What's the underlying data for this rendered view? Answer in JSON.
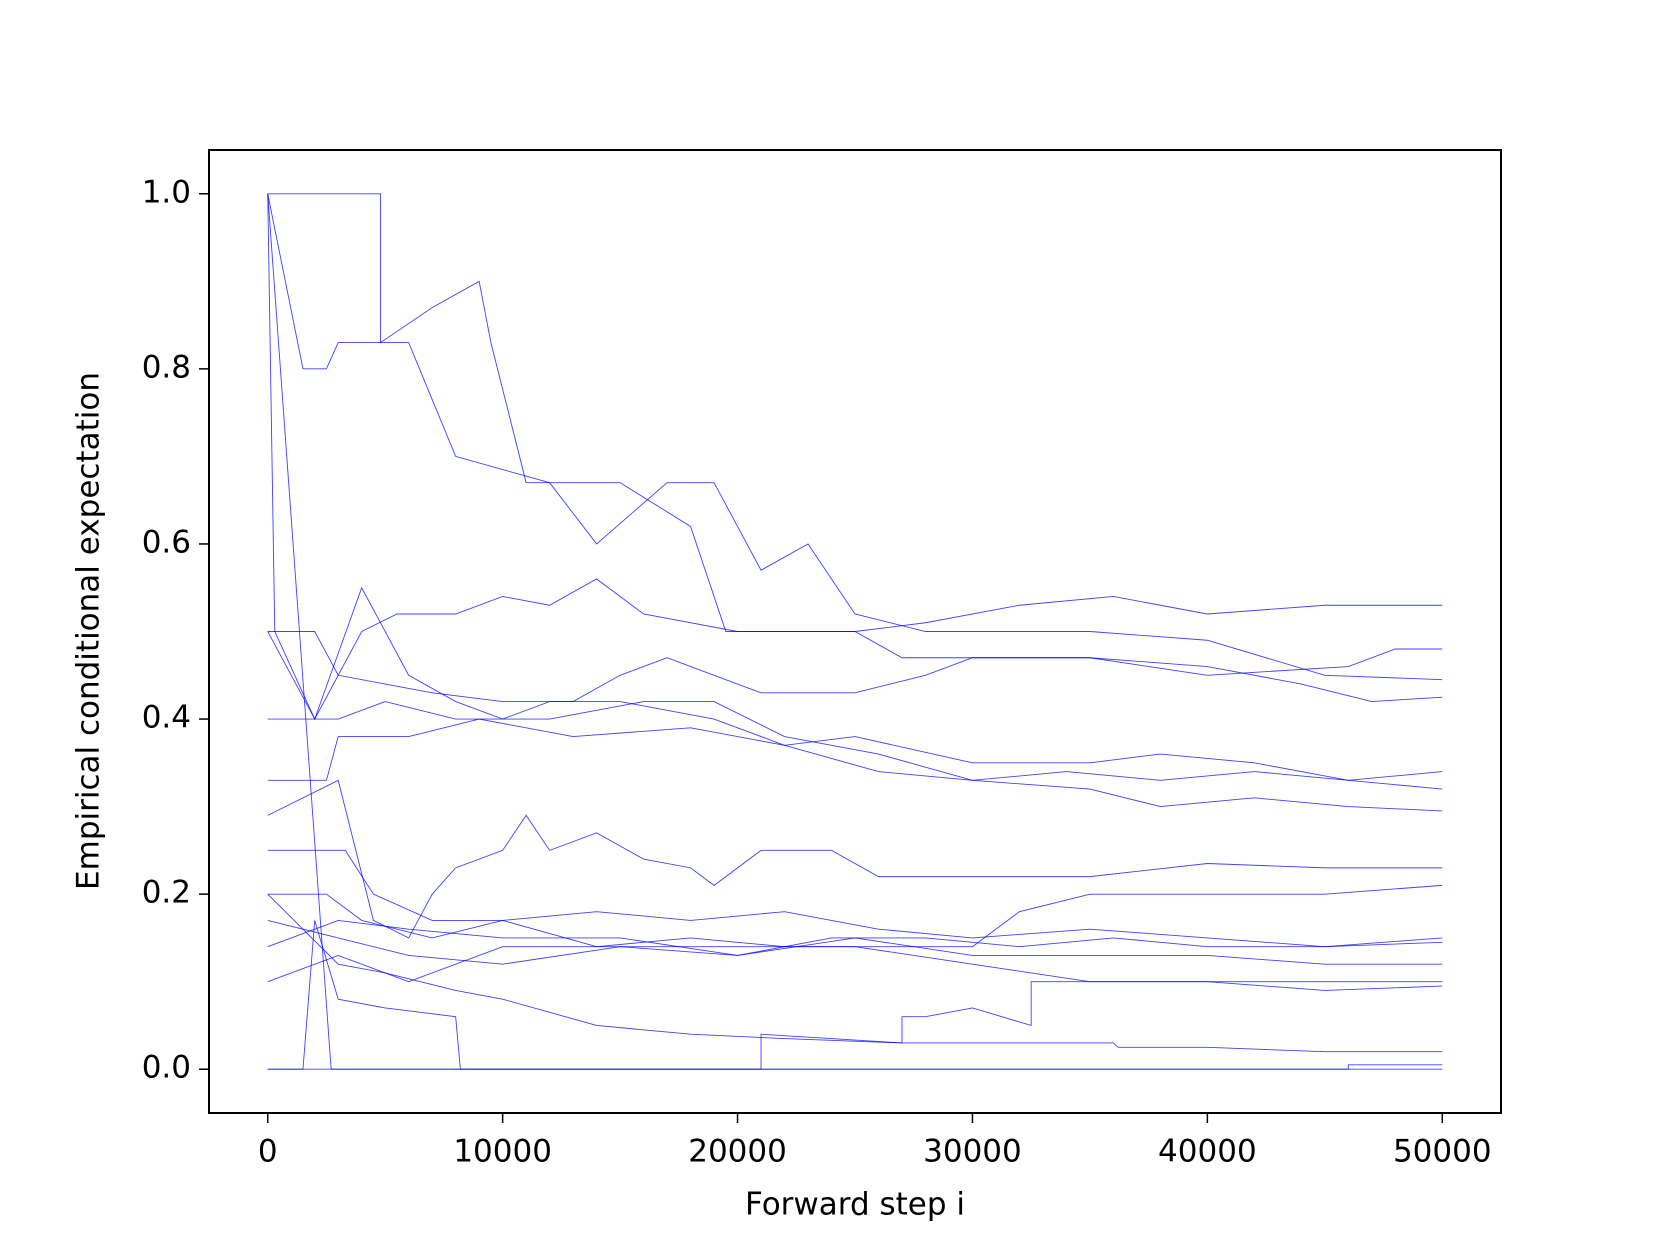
{
  "chart_data": {
    "type": "line",
    "xlabel": "Forward step i",
    "ylabel": "Empirical conditional expectation",
    "xlim": [
      -2500,
      52500
    ],
    "ylim": [
      -0.05,
      1.05
    ],
    "xticks": [
      0,
      10000,
      20000,
      30000,
      40000,
      50000
    ],
    "yticks": [
      {
        "value": 0,
        "label": "0.0"
      },
      0.2,
      0.4,
      0.6,
      0.8,
      {
        "value": 1,
        "label": "1.0"
      }
    ],
    "grid": false,
    "series": [
      {
        "color": "#0000ff",
        "x": [
          0,
          300,
          2000,
          4000,
          5500,
          8000,
          10000,
          12000,
          14000,
          16000,
          20000,
          25000,
          28000,
          32000,
          36000,
          40000,
          45000,
          50000
        ],
        "values": [
          1,
          0.5,
          0.4,
          0.5,
          0.52,
          0.52,
          0.54,
          0.53,
          0.56,
          0.52,
          0.5,
          0.5,
          0.51,
          0.53,
          0.54,
          0.52,
          0.53,
          0.53
        ]
      },
      {
        "color": "#0000ff",
        "x": [
          0,
          4800,
          4800,
          7000,
          9000,
          9500,
          11000,
          15000,
          18000,
          19500,
          25000,
          27000,
          30000,
          35000,
          40000,
          46000,
          48000,
          50000
        ],
        "values": [
          1,
          1,
          0.83,
          0.87,
          0.9,
          0.83,
          0.67,
          0.67,
          0.62,
          0.5,
          0.5,
          0.47,
          0.47,
          0.47,
          0.45,
          0.46,
          0.48,
          0.48
        ]
      },
      {
        "color": "#0000ff",
        "x": [
          0,
          1500,
          2500,
          3000,
          6000,
          8000,
          12000,
          14000,
          17000,
          19000,
          21000,
          23000,
          25000,
          28000,
          30000,
          35000,
          40000,
          45000,
          50000
        ],
        "values": [
          1,
          0.8,
          0.8,
          0.83,
          0.83,
          0.7,
          0.67,
          0.6,
          0.67,
          0.67,
          0.57,
          0.6,
          0.52,
          0.5,
          0.5,
          0.5,
          0.49,
          0.45,
          0.445
        ]
      },
      {
        "color": "#0000ff",
        "x": [
          0,
          2000,
          3000,
          5000,
          7000,
          10000,
          13000,
          15000,
          17000,
          19000,
          21000,
          25000,
          28000,
          30000,
          35000,
          40000,
          44000,
          47000,
          50000
        ],
        "values": [
          0.5,
          0.5,
          0.45,
          0.44,
          0.43,
          0.42,
          0.42,
          0.45,
          0.47,
          0.45,
          0.43,
          0.43,
          0.45,
          0.47,
          0.47,
          0.46,
          0.44,
          0.42,
          0.425
        ]
      },
      {
        "color": "#0000ff",
        "x": [
          0,
          2000,
          4000,
          6000,
          8000,
          10000,
          12000,
          15000,
          19000,
          22000,
          25000,
          30000,
          35000,
          38000,
          42000,
          46000,
          50000
        ],
        "values": [
          0.5,
          0.4,
          0.55,
          0.45,
          0.42,
          0.4,
          0.42,
          0.42,
          0.4,
          0.37,
          0.38,
          0.35,
          0.35,
          0.36,
          0.35,
          0.33,
          0.34
        ]
      },
      {
        "color": "#0000ff",
        "x": [
          0,
          3000,
          5000,
          8000,
          12000,
          16000,
          19000,
          22000,
          26000,
          30000,
          34000,
          38000,
          42000,
          46000,
          50000
        ],
        "values": [
          0.4,
          0.4,
          0.42,
          0.4,
          0.4,
          0.42,
          0.42,
          0.38,
          0.36,
          0.33,
          0.34,
          0.33,
          0.34,
          0.33,
          0.32
        ]
      },
      {
        "color": "#0000ff",
        "x": [
          0,
          2500,
          3000,
          6000,
          9000,
          13000,
          18000,
          22000,
          26000,
          30000,
          35000,
          38000,
          42000,
          46000,
          50000
        ],
        "values": [
          0.33,
          0.33,
          0.38,
          0.38,
          0.4,
          0.38,
          0.39,
          0.37,
          0.34,
          0.33,
          0.32,
          0.3,
          0.31,
          0.3,
          0.295
        ]
      },
      {
        "color": "#0000ff",
        "x": [
          0,
          3000,
          4500,
          6000,
          7000,
          8000,
          10000,
          11000,
          12000,
          14000,
          16000,
          18000,
          19000,
          21000,
          24000,
          26000,
          30000,
          35000,
          40000,
          45000,
          50000
        ],
        "values": [
          0.29,
          0.33,
          0.17,
          0.15,
          0.2,
          0.23,
          0.25,
          0.29,
          0.25,
          0.27,
          0.24,
          0.23,
          0.21,
          0.25,
          0.25,
          0.22,
          0.22,
          0.22,
          0.235,
          0.23,
          0.23
        ]
      },
      {
        "color": "#0000ff",
        "x": [
          0,
          2000,
          3300,
          4500,
          7000,
          10000,
          14000,
          18000,
          22000,
          26000,
          30000,
          32000,
          35000,
          40000,
          45000,
          50000
        ],
        "values": [
          0.25,
          0.25,
          0.25,
          0.2,
          0.17,
          0.17,
          0.14,
          0.15,
          0.14,
          0.14,
          0.14,
          0.18,
          0.2,
          0.2,
          0.2,
          0.21
        ]
      },
      {
        "color": "#0000ff",
        "x": [
          0,
          2500,
          4000,
          7000,
          10000,
          14000,
          18000,
          22000,
          26000,
          30000,
          35000,
          40000,
          45000,
          50000
        ],
        "values": [
          0.2,
          0.2,
          0.17,
          0.15,
          0.17,
          0.18,
          0.17,
          0.18,
          0.16,
          0.15,
          0.16,
          0.15,
          0.14,
          0.15
        ]
      },
      {
        "color": "#0000ff",
        "x": [
          0,
          3000,
          6000,
          10000,
          15000,
          20000,
          24000,
          28000,
          32000,
          36000,
          40000,
          45000,
          50000
        ],
        "values": [
          0.17,
          0.15,
          0.13,
          0.12,
          0.14,
          0.13,
          0.15,
          0.15,
          0.14,
          0.15,
          0.14,
          0.14,
          0.145
        ]
      },
      {
        "color": "#0000ff",
        "x": [
          0,
          3000,
          6000,
          10000,
          15000,
          20000,
          25000,
          30000,
          35000,
          40000,
          45000,
          50000
        ],
        "values": [
          0.14,
          0.17,
          0.16,
          0.15,
          0.15,
          0.13,
          0.15,
          0.13,
          0.13,
          0.13,
          0.12,
          0.12
        ]
      },
      {
        "color": "#0000ff",
        "x": [
          0,
          3000,
          6000,
          10000,
          15000,
          20000,
          25000,
          30000,
          35000,
          40000,
          45000,
          50000
        ],
        "values": [
          0.1,
          0.13,
          0.1,
          0.14,
          0.14,
          0.14,
          0.14,
          0.12,
          0.1,
          0.1,
          0.1,
          0.1
        ]
      },
      {
        "color": "#0000ff",
        "x": [
          0,
          3000,
          5000,
          8000,
          10000,
          14000,
          18000,
          22000,
          27000,
          27000,
          28000,
          30000,
          32500,
          32500,
          36000,
          40000,
          45000,
          50000
        ],
        "values": [
          0.2,
          0.12,
          0.11,
          0.09,
          0.08,
          0.05,
          0.04,
          0.035,
          0.03,
          0.06,
          0.06,
          0.07,
          0.05,
          0.1,
          0.1,
          0.1,
          0.09,
          0.095
        ]
      },
      {
        "color": "#0000ff",
        "x": [
          0,
          1500,
          2000,
          3000,
          5000,
          8000,
          8200,
          21000,
          21000,
          27000,
          30000,
          36000,
          36200,
          40000,
          45000,
          50000
        ],
        "values": [
          0,
          0,
          0.17,
          0.08,
          0.07,
          0.06,
          0,
          0,
          0.04,
          0.03,
          0.03,
          0.03,
          0.025,
          0.025,
          0.02,
          0.02
        ]
      },
      {
        "color": "#0000ff",
        "x": [
          0,
          2700,
          46000,
          46000,
          50000
        ],
        "values": [
          1,
          0,
          0,
          0.005,
          0.005
        ]
      },
      {
        "color": "#0000ff",
        "x": [
          0,
          50000
        ],
        "values": [
          0,
          0
        ]
      }
    ]
  }
}
